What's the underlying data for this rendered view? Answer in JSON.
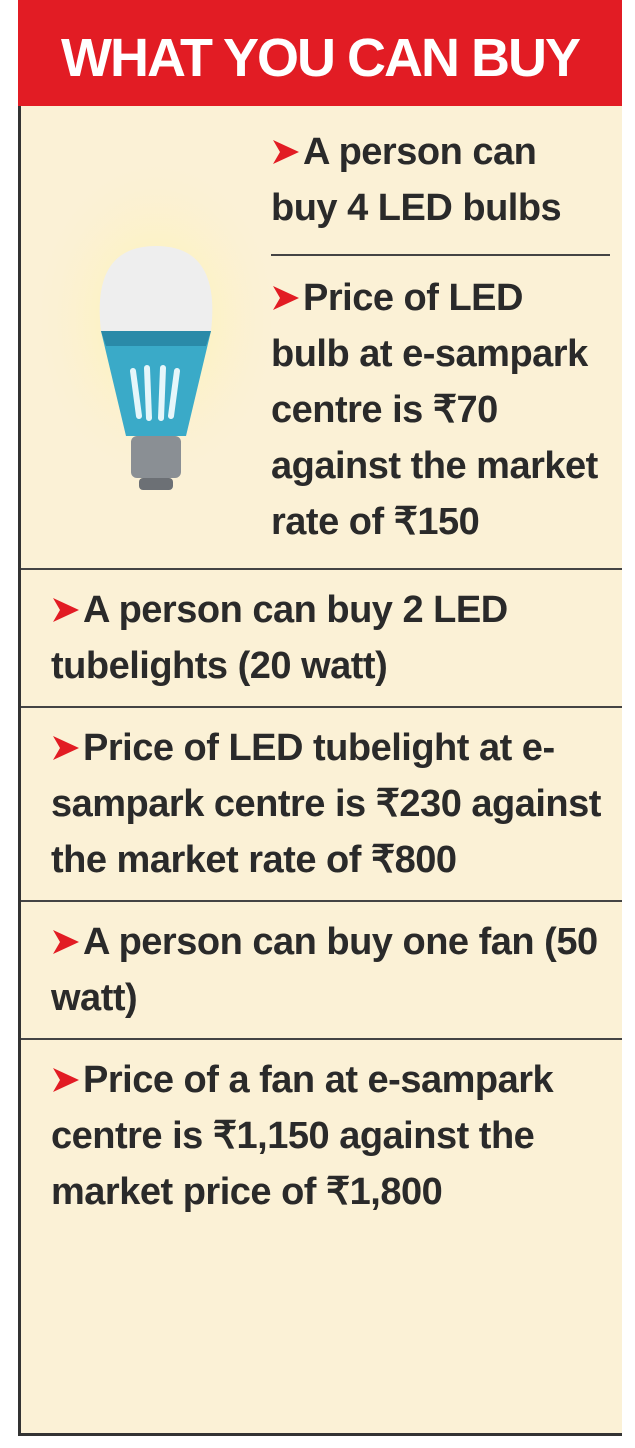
{
  "title": "WHAT YOU CAN BUY",
  "items": [
    "A person can buy 4 LED bulbs",
    "Price of LED bulb at e-sampark centre is ₹70 against the market rate of ₹150",
    "A person can buy 2 LED tubelights (20 watt)",
    "Price of LED tubelight at e-sampark centre is ₹230 against the market rate of ₹800",
    "A person can buy one fan (50 watt)",
    "Price of a fan at e-sampark centre is ₹1,150 against the market price of ₹1,800"
  ]
}
